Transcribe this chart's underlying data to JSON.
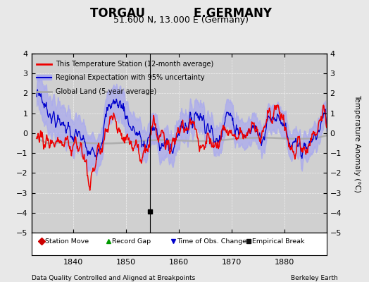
{
  "title1": "TORGAU            E.GERMANY",
  "title2": "51.600 N, 13.000 E (Germany)",
  "ylabel": "Temperature Anomaly (°C)",
  "xlabel_left": "Data Quality Controlled and Aligned at Breakpoints",
  "xlabel_right": "Berkeley Earth",
  "xlim": [
    1832,
    1888
  ],
  "ylim": [
    -5,
    4
  ],
  "yticks": [
    -5,
    -4,
    -3,
    -2,
    -1,
    0,
    1,
    2,
    3,
    4
  ],
  "xticks": [
    1840,
    1850,
    1860,
    1870,
    1880
  ],
  "empirical_break_x": 1854.5,
  "bg_color": "#e8e8e8",
  "plot_bg_color": "#d0d0d0",
  "legend1_label": "This Temperature Station (12-month average)",
  "legend2_label": "Regional Expectation with 95% uncertainty",
  "legend3_label": "Global Land (5-year average)",
  "station_color": "#ee0000",
  "regional_color": "#0000cc",
  "regional_fill_color": "#aaaaee",
  "global_color": "#aaaaaa",
  "title_fontsize": 12,
  "subtitle_fontsize": 9,
  "tick_fontsize": 8,
  "label_fontsize": 7.5
}
